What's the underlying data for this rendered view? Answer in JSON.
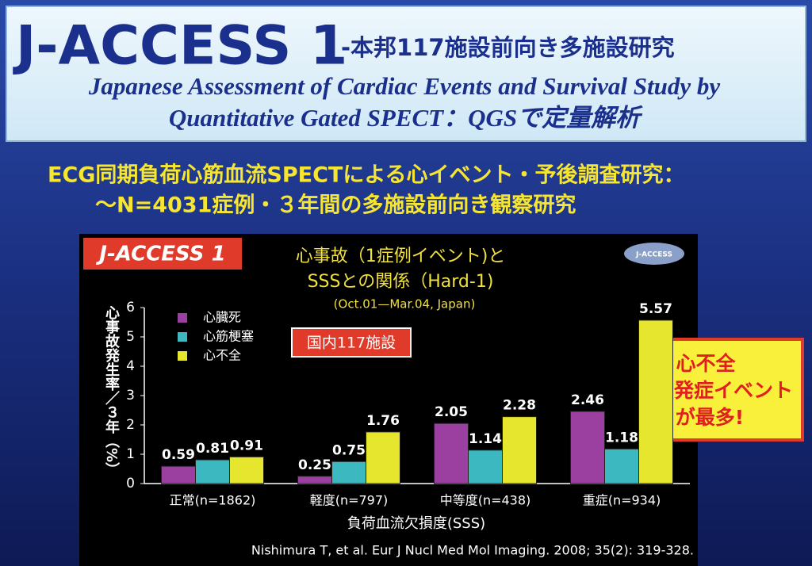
{
  "header": {
    "title": "J-ACCESS 1",
    "subtitle": "-本邦117施設前向き多施設研究",
    "english_lines": [
      "Japanese Assessment of Cardiac Events and Survival Study by",
      "Quantitative Gated SPECT：QGSで定量解析"
    ]
  },
  "intro_lines": [
    "ECG同期負荷心筋血流SPECTによる心イベント・予後調査研究：",
    "～N=4031症例・３年間の多施設前向き観察研究"
  ],
  "chart_data": {
    "type": "bar",
    "badge": "J-ACCESS 1",
    "logo": "J-ACCESS",
    "title_lines": [
      "心事故（1症例イベント)と",
      "SSSとの関係（Hard-1)"
    ],
    "subtitle": "(Oct.01—Mar.04, Japan)",
    "categories": [
      "正常(n=1862)",
      "軽度(n=797)",
      "中等度(n=438)",
      "重症(n=934)"
    ],
    "series": [
      {
        "name": "心臓死",
        "color": "#9b3fa0",
        "values": [
          0.59,
          0.25,
          2.05,
          2.46
        ]
      },
      {
        "name": "心筋梗塞",
        "color": "#3bb8c0",
        "values": [
          0.81,
          0.75,
          1.14,
          1.18
        ]
      },
      {
        "name": "心不全",
        "color": "#e6e62e",
        "values": [
          0.91,
          1.76,
          2.28,
          5.57
        ]
      }
    ],
    "ylim": [
      0,
      6
    ],
    "yticks": [
      0,
      1,
      2,
      3,
      4,
      5,
      6
    ],
    "x_label": "負荷血流欠損度(SSS)",
    "y_label": "心事故発生率／３年（%）",
    "annotation": "国内117施設",
    "callout_lines": [
      "心不全",
      "発症イベント",
      "が最多!"
    ]
  },
  "citation": "Nishimura T, et al. Eur J Nucl Med Mol Imaging. 2008; 35(2): 319-328."
}
